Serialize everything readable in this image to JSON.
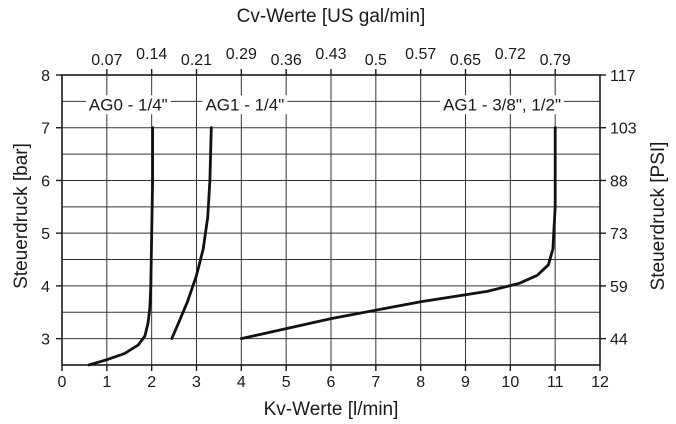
{
  "chart_data": {
    "type": "line",
    "title": "",
    "xlabel": "Kv-Werte [l/min]",
    "ylabel": "Steuerdruck [bar]",
    "x2label": "Cv-Werte [US gal/min]",
    "y2label": "Steuerdruck [PSI]",
    "xlim": [
      0,
      12
    ],
    "ylim": [
      2.5,
      8
    ],
    "grid": true,
    "legend": "none",
    "x_ticks": [
      "0",
      "1",
      "2",
      "3",
      "4",
      "5",
      "6",
      "7",
      "8",
      "9",
      "10",
      "11",
      "12"
    ],
    "y_ticks": [
      "3",
      "4",
      "5",
      "6",
      "7",
      "8"
    ],
    "x2_ticks": [
      {
        "label": "0.07",
        "at": 1,
        "raised": false
      },
      {
        "label": "0.14",
        "at": 2,
        "raised": true
      },
      {
        "label": "0.21",
        "at": 3,
        "raised": false
      },
      {
        "label": "0.29",
        "at": 4,
        "raised": true
      },
      {
        "label": "0.36",
        "at": 5,
        "raised": false
      },
      {
        "label": "0.43",
        "at": 6,
        "raised": true
      },
      {
        "label": "0.5",
        "at": 7,
        "raised": false
      },
      {
        "label": "0.57",
        "at": 8,
        "raised": true
      },
      {
        "label": "0.65",
        "at": 9,
        "raised": false
      },
      {
        "label": "0.72",
        "at": 10,
        "raised": true
      },
      {
        "label": "0.79",
        "at": 11,
        "raised": false
      }
    ],
    "y2_ticks": [
      {
        "label": "117",
        "at": 8
      },
      {
        "label": "103",
        "at": 7
      },
      {
        "label": "88",
        "at": 6
      },
      {
        "label": "73",
        "at": 5
      },
      {
        "label": "59",
        "at": 4
      },
      {
        "label": "44",
        "at": 3
      }
    ],
    "series": [
      {
        "name": "AG0 - 1/4\"",
        "label_at": [
          0.6,
          7.35
        ],
        "points": [
          [
            0.6,
            2.5
          ],
          [
            1.0,
            2.6
          ],
          [
            1.4,
            2.72
          ],
          [
            1.7,
            2.88
          ],
          [
            1.85,
            3.05
          ],
          [
            1.92,
            3.3
          ],
          [
            1.96,
            3.6
          ],
          [
            1.98,
            4.0
          ],
          [
            2.0,
            5.0
          ],
          [
            2.02,
            6.0
          ],
          [
            2.02,
            7.0
          ]
        ]
      },
      {
        "name": "AG1 - 1/4\"",
        "label_at": [
          3.2,
          7.35
        ],
        "points": [
          [
            2.45,
            3.0
          ],
          [
            2.6,
            3.3
          ],
          [
            2.8,
            3.7
          ],
          [
            3.0,
            4.2
          ],
          [
            3.15,
            4.7
          ],
          [
            3.25,
            5.3
          ],
          [
            3.3,
            6.0
          ],
          [
            3.33,
            7.0
          ]
        ]
      },
      {
        "name": "AG1 - 3/8\", 1/2\"",
        "label_at": [
          8.5,
          7.35
        ],
        "points": [
          [
            4.0,
            3.0
          ],
          [
            6.0,
            3.38
          ],
          [
            8.0,
            3.7
          ],
          [
            9.5,
            3.9
          ],
          [
            10.2,
            4.05
          ],
          [
            10.6,
            4.2
          ],
          [
            10.85,
            4.4
          ],
          [
            10.95,
            4.7
          ],
          [
            11.0,
            5.5
          ],
          [
            11.0,
            7.0
          ]
        ]
      }
    ]
  }
}
